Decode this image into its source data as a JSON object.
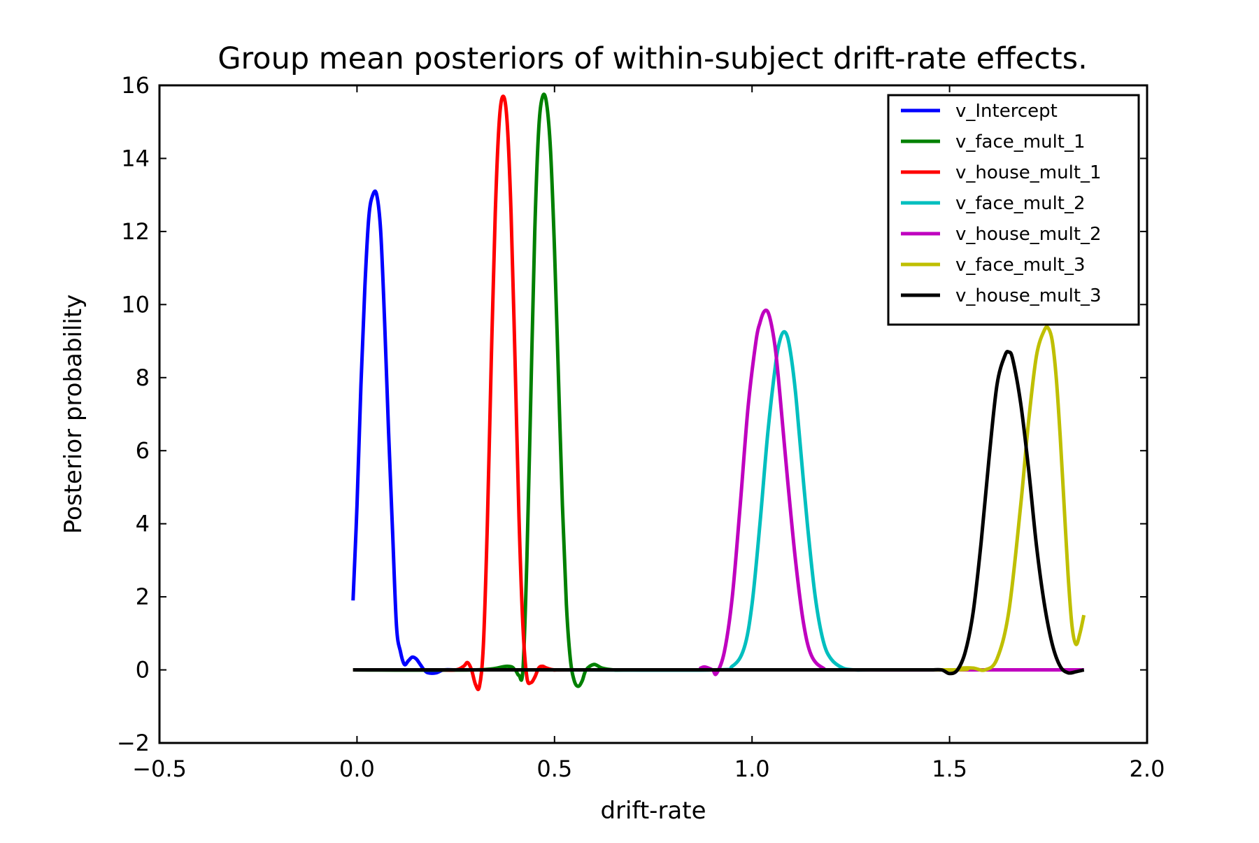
{
  "chart_data": {
    "type": "line",
    "title": "Group mean posteriors of within-subject drift-rate effects.",
    "xlabel": "drift-rate",
    "ylabel": "Posterior probability",
    "xlim": [
      -0.5,
      2.0
    ],
    "ylim": [
      -2,
      16
    ],
    "xticks": [
      -0.5,
      0.0,
      0.5,
      1.0,
      1.5,
      2.0
    ],
    "xtick_labels": [
      "−0.5",
      "0.0",
      "0.5",
      "1.0",
      "1.5",
      "2.0"
    ],
    "yticks": [
      -2,
      0,
      2,
      4,
      6,
      8,
      10,
      12,
      14,
      16
    ],
    "ytick_labels": [
      "−2",
      "0",
      "2",
      "4",
      "6",
      "8",
      "10",
      "12",
      "14",
      "16"
    ],
    "grid": false,
    "legend_position": "top-right",
    "series": [
      {
        "name": "v_Intercept",
        "color": "#0000ff",
        "x": [
          -0.01,
          0.0,
          0.01,
          0.02,
          0.03,
          0.04,
          0.05,
          0.06,
          0.07,
          0.08,
          0.09,
          0.1,
          0.11,
          0.12,
          0.13,
          0.14,
          0.15,
          0.16,
          0.17,
          0.18,
          0.2,
          0.22,
          0.25,
          0.3,
          0.4,
          0.6,
          1.0,
          1.5,
          1.84
        ],
        "y": [
          1.9,
          4.5,
          7.8,
          10.5,
          12.4,
          13.0,
          13.0,
          12.0,
          9.5,
          6.5,
          3.8,
          1.2,
          0.5,
          0.15,
          0.25,
          0.35,
          0.3,
          0.15,
          0.0,
          -0.08,
          -0.08,
          0.0,
          0.0,
          0.0,
          0.0,
          0.0,
          0.0,
          0.0,
          0.0
        ]
      },
      {
        "name": "v_face_mult_1",
        "color": "#008000",
        "x": [
          -0.01,
          0.3,
          0.38,
          0.4,
          0.41,
          0.42,
          0.43,
          0.44,
          0.45,
          0.46,
          0.47,
          0.48,
          0.49,
          0.5,
          0.51,
          0.52,
          0.53,
          0.54,
          0.55,
          0.56,
          0.57,
          0.58,
          0.6,
          0.62,
          0.65,
          0.7,
          1.0,
          1.5,
          1.84
        ],
        "y": [
          0.0,
          0.0,
          0.1,
          0.0,
          -0.15,
          0.0,
          3.0,
          7.5,
          12.0,
          14.8,
          15.7,
          15.5,
          14.2,
          11.5,
          8.0,
          4.5,
          1.8,
          0.3,
          -0.3,
          -0.45,
          -0.3,
          0.0,
          0.15,
          0.05,
          0.0,
          0.0,
          0.0,
          0.0,
          0.0
        ]
      },
      {
        "name": "v_house_mult_1",
        "color": "#ff0000",
        "x": [
          -0.01,
          0.2,
          0.25,
          0.27,
          0.28,
          0.29,
          0.3,
          0.31,
          0.32,
          0.33,
          0.34,
          0.35,
          0.36,
          0.37,
          0.38,
          0.39,
          0.4,
          0.41,
          0.42,
          0.43,
          0.44,
          0.45,
          0.46,
          0.47,
          0.48,
          0.5,
          0.55,
          1.0,
          1.84
        ],
        "y": [
          0.0,
          0.0,
          0.0,
          0.1,
          0.2,
          0.0,
          -0.4,
          -0.45,
          0.7,
          4.0,
          8.5,
          12.5,
          15.0,
          15.7,
          15.0,
          12.5,
          8.5,
          4.2,
          1.2,
          -0.2,
          -0.35,
          -0.2,
          0.05,
          0.1,
          0.05,
          0.0,
          0.0,
          0.0,
          0.0
        ]
      },
      {
        "name": "v_face_mult_2",
        "color": "#00bfbf",
        "x": [
          -0.01,
          0.5,
          0.9,
          0.95,
          0.98,
          1.0,
          1.02,
          1.04,
          1.06,
          1.07,
          1.08,
          1.09,
          1.1,
          1.11,
          1.12,
          1.14,
          1.16,
          1.18,
          1.2,
          1.23,
          1.26,
          1.3,
          1.5,
          1.84
        ],
        "y": [
          0.0,
          0.0,
          0.0,
          0.1,
          0.6,
          1.8,
          4.0,
          6.5,
          8.4,
          9.0,
          9.25,
          9.1,
          8.5,
          7.6,
          6.4,
          4.0,
          2.0,
          0.8,
          0.3,
          0.05,
          0.0,
          0.0,
          0.0,
          0.0
        ]
      },
      {
        "name": "v_house_mult_2",
        "color": "#bf00bf",
        "x": [
          -0.01,
          0.5,
          0.85,
          0.87,
          0.88,
          0.9,
          0.91,
          0.93,
          0.95,
          0.97,
          0.99,
          1.01,
          1.02,
          1.03,
          1.04,
          1.05,
          1.06,
          1.07,
          1.09,
          1.11,
          1.13,
          1.15,
          1.18,
          1.22,
          1.5,
          1.84
        ],
        "y": [
          0.0,
          0.0,
          0.0,
          0.05,
          0.08,
          0.0,
          -0.1,
          0.5,
          2.0,
          4.5,
          7.2,
          9.0,
          9.5,
          9.8,
          9.8,
          9.4,
          8.7,
          7.6,
          5.2,
          3.0,
          1.3,
          0.4,
          0.05,
          0.0,
          0.0,
          0.0
        ]
      },
      {
        "name": "v_face_mult_3",
        "color": "#bfbf00",
        "x": [
          -0.01,
          1.0,
          1.5,
          1.53,
          1.56,
          1.59,
          1.62,
          1.65,
          1.68,
          1.7,
          1.72,
          1.74,
          1.75,
          1.76,
          1.77,
          1.78,
          1.79,
          1.8,
          1.81,
          1.82,
          1.83,
          1.84
        ],
        "y": [
          0.0,
          0.0,
          0.0,
          0.05,
          0.05,
          0.0,
          0.3,
          1.6,
          4.5,
          6.8,
          8.6,
          9.3,
          9.35,
          9.0,
          8.0,
          6.4,
          4.5,
          2.6,
          1.2,
          0.7,
          1.0,
          1.5
        ]
      },
      {
        "name": "v_house_mult_3",
        "color": "#000000",
        "x": [
          -0.01,
          0.5,
          1.0,
          1.4,
          1.45,
          1.48,
          1.5,
          1.52,
          1.54,
          1.56,
          1.58,
          1.6,
          1.62,
          1.64,
          1.65,
          1.66,
          1.68,
          1.7,
          1.72,
          1.74,
          1.76,
          1.78,
          1.8,
          1.82,
          1.84
        ],
        "y": [
          0.0,
          0.0,
          0.0,
          0.0,
          0.0,
          0.0,
          -0.1,
          0.0,
          0.5,
          1.6,
          3.5,
          5.8,
          7.8,
          8.6,
          8.7,
          8.5,
          7.3,
          5.5,
          3.4,
          1.8,
          0.7,
          0.1,
          -0.08,
          -0.05,
          0.0
        ]
      }
    ]
  }
}
